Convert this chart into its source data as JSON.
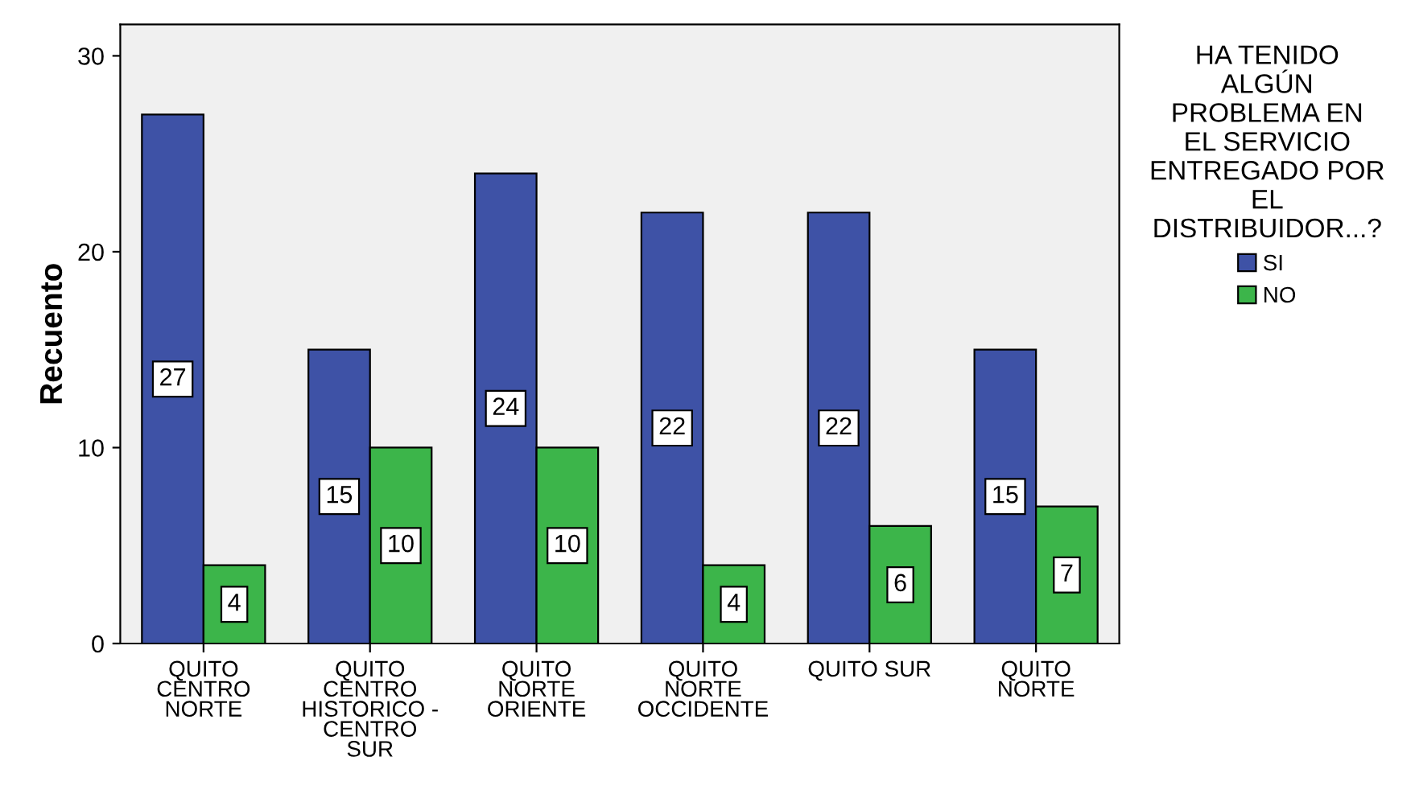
{
  "chart_data": {
    "type": "bar",
    "ylabel": "Recuento",
    "legend_title": "HA TENIDO\nALGÚN\nPROBLEMA EN\nEL SERVICIO\nENTREGADO POR\nEL\nDISTRIBUIDOR...?",
    "categories": [
      "QUITO\nCENTRO\nNORTE",
      "QUITO\nCENTRO\nHISTORICO -\nCENTRO\nSUR",
      "QUITO\nNORTE\nORIENTE",
      "QUITO\nNORTE\nOCCIDENTE",
      "QUITO SUR",
      "QUITO\nNORTE"
    ],
    "series": [
      {
        "name": "SI",
        "color": "#3e52a6",
        "values": [
          27,
          15,
          24,
          22,
          22,
          15
        ]
      },
      {
        "name": "NO",
        "color": "#3cb54a",
        "values": [
          4,
          10,
          10,
          4,
          6,
          7
        ]
      }
    ],
    "ylim": [
      0,
      31.6
    ],
    "yticks": [
      0,
      10,
      20,
      30
    ],
    "grid": false,
    "legend": "top right",
    "data_labels": true
  }
}
